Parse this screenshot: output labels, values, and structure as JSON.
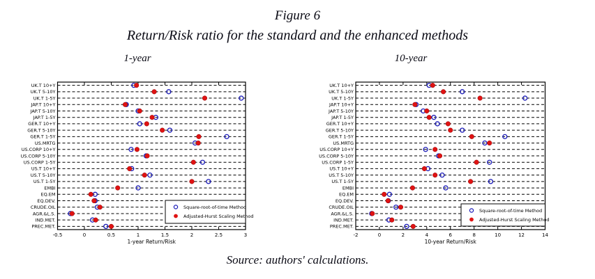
{
  "figure": {
    "title": "Figure 6",
    "subtitle": "Return/Risk ratio for the standard and the enhanced methods",
    "source": "Source: authors' calculations."
  },
  "categories": [
    "UK.T 10+Y",
    "UK.T 5-10Y",
    "UK.T 1-5Y",
    "JAP.T 10+Y",
    "JAP.T 5-10Y",
    "JAP.T 1-5Y",
    "GER.T 10+Y",
    "GER.T 5-10Y",
    "GER.T 1-5Y",
    "US.MRTG",
    "US.CORP 10+Y",
    "US.CORP 5-10Y",
    "US.CORP 1-5Y",
    "US.T 10+Y",
    "US.T 5-10Y",
    "US.T 1-5Y",
    "EMBI",
    "EQ.EM",
    "EQ.DEV.",
    "CRUDE.OIL",
    "AGR.&L.S.",
    "IND.MET.",
    "PREC.MET."
  ],
  "colors": {
    "sqrt_method": "#1a1ab8",
    "hurst_method": "#e01313",
    "grid": "#000000",
    "text": "#000000"
  },
  "chart_data": [
    {
      "type": "scatter",
      "panel_title": "1-year",
      "xlabel": "1-year Return/Risk",
      "xlim": [
        -0.5,
        3
      ],
      "xticks": [
        -0.5,
        0,
        0.5,
        1,
        1.5,
        2,
        2.5,
        3
      ],
      "xtick_labels": [
        "-0.5",
        "0",
        "0.5",
        "1",
        "1.5",
        "2",
        "2.5",
        "3"
      ],
      "grid": "horizontal-dashed",
      "legend_position": "lower-right",
      "series": [
        {
          "name": "Square-root-of-time Method",
          "marker": "open-circle",
          "color": "#1a1ab8",
          "values": [
            0.92,
            1.57,
            2.92,
            0.78,
            1.0,
            1.33,
            1.03,
            1.59,
            2.65,
            2.06,
            0.87,
            1.15,
            2.2,
            0.88,
            1.22,
            2.31,
            1.0,
            0.2,
            0.2,
            0.24,
            -0.26,
            0.15,
            0.4
          ]
        },
        {
          "name": "Adjusted-Hurst Scaling Method",
          "marker": "filled-circle",
          "color": "#e01313",
          "values": [
            0.97,
            1.3,
            2.24,
            0.76,
            1.03,
            1.26,
            1.16,
            1.45,
            2.13,
            2.12,
            0.98,
            1.17,
            2.03,
            0.84,
            1.12,
            2.0,
            0.62,
            0.12,
            0.18,
            0.29,
            -0.23,
            0.21,
            0.5
          ]
        }
      ]
    },
    {
      "type": "scatter",
      "panel_title": "10-year",
      "xlabel": "10-year Return/Risk",
      "xlim": [
        -2,
        14
      ],
      "xticks": [
        -2,
        0,
        2,
        4,
        6,
        8,
        10,
        12,
        14
      ],
      "xtick_labels": [
        "-2",
        "0",
        "2",
        "4",
        "6",
        "8",
        "10",
        "12",
        "14"
      ],
      "grid": "horizontal-dashed",
      "legend_position": "lower-right",
      "series": [
        {
          "name": "Square-root-of-time Method",
          "marker": "open-circle",
          "color": "#1a1ab8",
          "values": [
            4.2,
            7.0,
            12.3,
            3.1,
            3.7,
            4.6,
            4.9,
            7.0,
            10.6,
            8.9,
            3.9,
            5.0,
            9.3,
            4.1,
            5.3,
            9.4,
            5.6,
            0.85,
            0.75,
            1.4,
            -0.65,
            0.8,
            2.3
          ]
        },
        {
          "name": "Adjusted-Hurst Scaling Method",
          "marker": "filled-circle",
          "color": "#e01313",
          "values": [
            4.5,
            5.4,
            8.5,
            3.0,
            4.0,
            4.2,
            5.8,
            6.0,
            7.8,
            9.3,
            4.7,
            5.1,
            8.2,
            3.8,
            4.7,
            7.7,
            2.8,
            0.4,
            0.73,
            1.8,
            -0.6,
            1.05,
            2.85
          ]
        }
      ]
    }
  ]
}
